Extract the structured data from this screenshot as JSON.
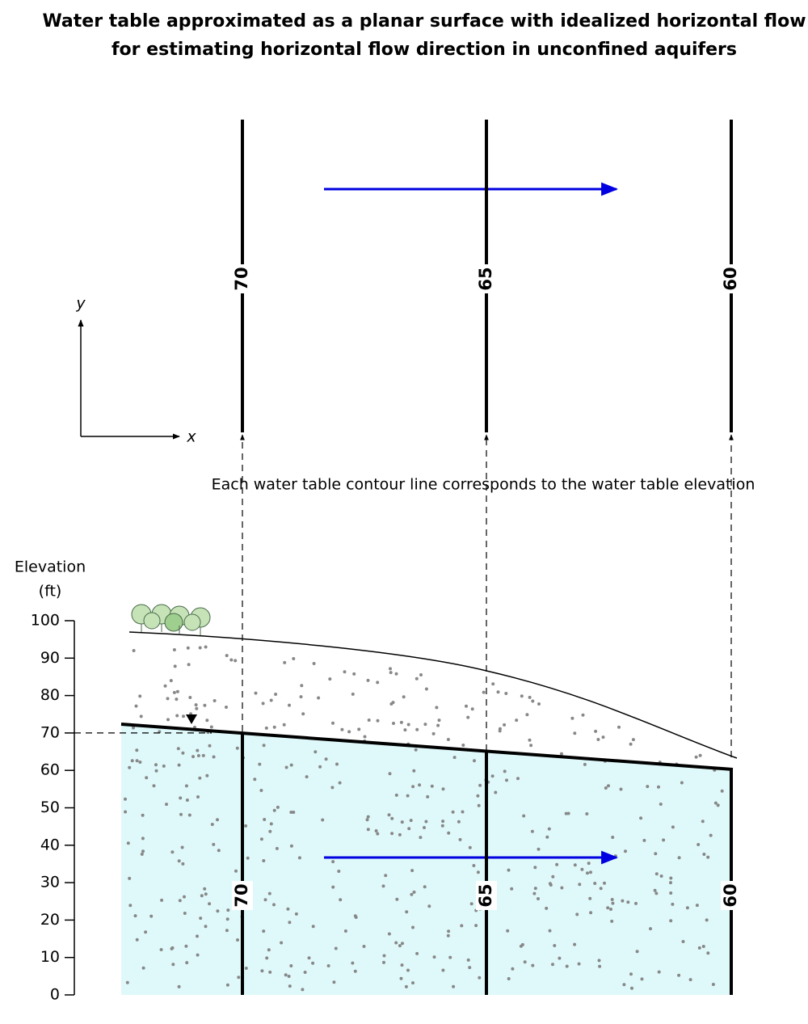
{
  "title": [
    "Water table approximated as a planar surface with idealized horizontal flow",
    "for estimating horizontal flow direction in unconfined aquifers"
  ],
  "plan_axes": {
    "x": "x",
    "y": "y"
  },
  "annotation": "Each water table contour line corresponds to the water table elevation",
  "elevation_axis": {
    "label": [
      "Elevation",
      "(ft)"
    ],
    "ticks": [
      0,
      10,
      20,
      30,
      40,
      50,
      60,
      70,
      80,
      90,
      100
    ]
  },
  "contours": [
    70,
    65,
    60
  ]
}
